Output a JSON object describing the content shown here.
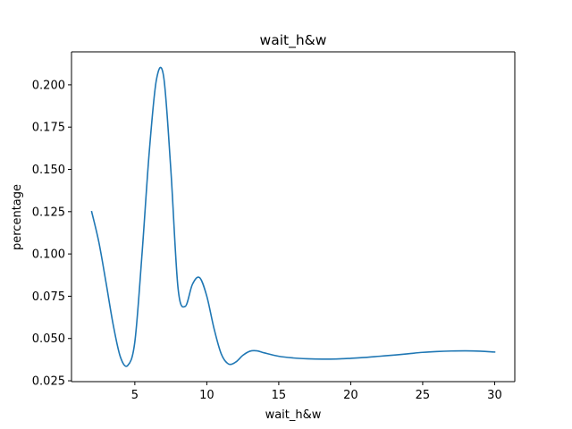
{
  "chart_data": {
    "type": "line",
    "title": "wait_h&w",
    "xlabel": "wait_h&w",
    "ylabel": "percentage",
    "xlim": [
      0.6,
      31.4
    ],
    "ylim": [
      0.0245,
      0.2195
    ],
    "xticks": [
      5,
      10,
      15,
      20,
      25,
      30
    ],
    "yticks": [
      0.025,
      0.05,
      0.075,
      0.1,
      0.125,
      0.15,
      0.175,
      0.2
    ],
    "ytick_labels": [
      "0.025",
      "0.050",
      "0.075",
      "0.100",
      "0.125",
      "0.150",
      "0.175",
      "0.200"
    ],
    "grid": false,
    "legend": "none",
    "series": [
      {
        "color": "#1f77b4",
        "x": [
          2,
          2.5,
          3,
          3.5,
          4,
          4.5,
          5,
          5.5,
          6,
          6.5,
          7,
          7.5,
          8,
          8.5,
          9,
          9.5,
          10,
          10.5,
          11,
          11.5,
          12,
          12.5,
          13,
          13.5,
          14,
          15,
          16,
          17,
          18,
          19,
          20,
          21,
          22,
          23,
          24,
          25,
          26,
          27,
          28,
          29,
          30
        ],
        "y": [
          0.125,
          0.107,
          0.083,
          0.058,
          0.039,
          0.034,
          0.048,
          0.1,
          0.16,
          0.203,
          0.205,
          0.15,
          0.08,
          0.069,
          0.082,
          0.086,
          0.075,
          0.056,
          0.041,
          0.035,
          0.036,
          0.04,
          0.0425,
          0.0427,
          0.0415,
          0.0395,
          0.0385,
          0.038,
          0.0378,
          0.0379,
          0.0383,
          0.0388,
          0.0395,
          0.0402,
          0.041,
          0.0418,
          0.0423,
          0.0426,
          0.0427,
          0.0425,
          0.042
        ]
      }
    ]
  }
}
